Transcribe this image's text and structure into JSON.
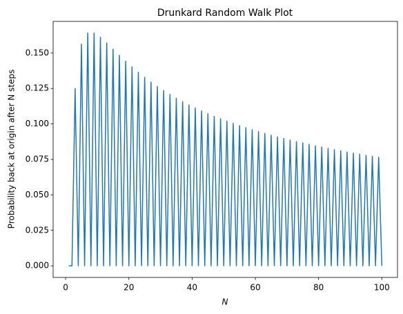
{
  "chart_data": {
    "type": "line",
    "title": "Drunkard Random Walk Plot",
    "xlabel": "N",
    "ylabel": "Probability back at origin after N steps",
    "x": [
      1,
      2,
      3,
      4,
      5,
      6,
      7,
      8,
      9,
      10,
      11,
      12,
      13,
      14,
      15,
      16,
      17,
      18,
      19,
      20,
      21,
      22,
      23,
      24,
      25,
      26,
      27,
      28,
      29,
      30,
      31,
      32,
      33,
      34,
      35,
      36,
      37,
      38,
      39,
      40,
      41,
      42,
      43,
      44,
      45,
      46,
      47,
      48,
      49,
      50,
      51,
      52,
      53,
      54,
      55,
      56,
      57,
      58,
      59,
      60,
      61,
      62,
      63,
      64,
      65,
      66,
      67,
      68,
      69,
      70,
      71,
      72,
      73,
      74,
      75,
      76,
      77,
      78,
      79,
      80,
      81,
      82,
      83,
      84,
      85,
      86,
      87,
      88,
      89,
      90,
      91,
      92,
      93,
      94,
      95,
      96,
      97,
      98,
      99,
      100
    ],
    "values": [
      0,
      0,
      0.125,
      0,
      0.1563,
      0,
      0.1641,
      0,
      0.1641,
      0,
      0.1611,
      0,
      0.1571,
      0,
      0.1527,
      0,
      0.1484,
      0,
      0.1442,
      0,
      0.1402,
      0,
      0.1364,
      0,
      0.1329,
      0,
      0.1295,
      0,
      0.1264,
      0,
      0.1235,
      0,
      0.1208,
      0,
      0.1182,
      0,
      0.1157,
      0,
      0.1134,
      0,
      0.1113,
      0,
      0.1092,
      0,
      0.1073,
      0,
      0.1054,
      0,
      0.1037,
      0,
      0.102,
      0,
      0.1004,
      0,
      0.0988,
      0,
      0.0974,
      0,
      0.096,
      0,
      0.0946,
      0,
      0.0933,
      0,
      0.0921,
      0,
      0.0909,
      0,
      0.0898,
      0,
      0.0887,
      0,
      0.0876,
      0,
      0.0866,
      0,
      0.0856,
      0,
      0.0846,
      0,
      0.0837,
      0,
      0.0828,
      0,
      0.0819,
      0,
      0.0811,
      0,
      0.0802,
      0,
      0.0794,
      0,
      0.0787,
      0,
      0.0779,
      0,
      0.0772,
      0,
      0.0765,
      0
    ],
    "color": "#1f77b4",
    "xlim": [
      -3.95,
      104.95
    ],
    "xticks": [
      0,
      20,
      40,
      60,
      80,
      100
    ],
    "ylim": [
      -0.0082,
      0.1723
    ],
    "yticks": [
      {
        "value": 0,
        "label": "0.000"
      },
      {
        "value": 0.025,
        "label": "0.025"
      },
      {
        "value": 0.05,
        "label": "0.050"
      },
      {
        "value": 0.075,
        "label": "0.075"
      },
      {
        "value": 0.1,
        "label": "0.100"
      },
      {
        "value": 0.125,
        "label": "0.125"
      },
      {
        "value": 0.15,
        "label": "0.150"
      }
    ],
    "grid": false
  }
}
